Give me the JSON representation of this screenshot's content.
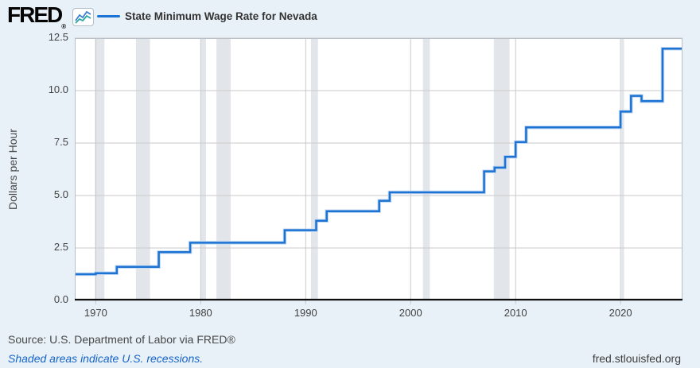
{
  "header": {
    "logo_text": "FRED",
    "logo_reg_mark": "®",
    "legend": {
      "label": "State Minimum Wage Rate for Nevada"
    }
  },
  "chart_data": {
    "type": "line",
    "line_style": "step-after",
    "title": "State Minimum Wage Rate for Nevada",
    "ylabel": "Dollars per Hour",
    "xlabel": "",
    "ylim": [
      0,
      12.5
    ],
    "y_ticks": [
      0,
      2.5,
      5,
      7.5,
      10,
      12.5
    ],
    "x_ticks": [
      1970,
      1980,
      1990,
      2000,
      2010,
      2020
    ],
    "x_range": [
      1968,
      2025.9
    ],
    "grid": true,
    "legend_position": "top-left",
    "series": [
      {
        "name": "State Minimum Wage Rate for Nevada",
        "units": "Dollars per Hour",
        "points": [
          {
            "year": 1968,
            "value": 1.25
          },
          {
            "year": 1970,
            "value": 1.3
          },
          {
            "year": 1972,
            "value": 1.6
          },
          {
            "year": 1976,
            "value": 2.3
          },
          {
            "year": 1979,
            "value": 2.75
          },
          {
            "year": 1988,
            "value": 3.35
          },
          {
            "year": 1991,
            "value": 3.8
          },
          {
            "year": 1992,
            "value": 4.25
          },
          {
            "year": 1997,
            "value": 4.75
          },
          {
            "year": 1998,
            "value": 5.15
          },
          {
            "year": 2007,
            "value": 6.15
          },
          {
            "year": 2008,
            "value": 6.33
          },
          {
            "year": 2009,
            "value": 6.85
          },
          {
            "year": 2010,
            "value": 7.55
          },
          {
            "year": 2011,
            "value": 8.25
          },
          {
            "year": 2020,
            "value": 9.0
          },
          {
            "year": 2021,
            "value": 9.75
          },
          {
            "year": 2022,
            "value": 9.5
          },
          {
            "year": 2024,
            "value": 12.0
          }
        ]
      }
    ],
    "recession_bands": [
      [
        1969.92,
        1970.83
      ],
      [
        1973.83,
        1975.17
      ],
      [
        1980.0,
        1980.5
      ],
      [
        1981.5,
        1982.85
      ],
      [
        1990.5,
        1991.17
      ],
      [
        2001.17,
        2001.83
      ],
      [
        2007.92,
        2009.42
      ],
      [
        2020.08,
        2020.33
      ]
    ]
  },
  "footer": {
    "source": "Source: U.S. Department of Labor via FRED®",
    "note": "Shaded areas indicate U.S. recessions.",
    "site": "fred.stlouisfed.org"
  },
  "colors": {
    "page_bg": "#e9f1f8",
    "plot_bg": "#ffffff",
    "line": "#1d73d3",
    "line_halo": "#c3d9f2",
    "grid": "#c9c9c9",
    "band": "#e2e6ea",
    "plot_border": "#b9bfc6",
    "axis": "#0d0d0d",
    "tick_text": "#424242",
    "note_blue": "#1463c8"
  }
}
